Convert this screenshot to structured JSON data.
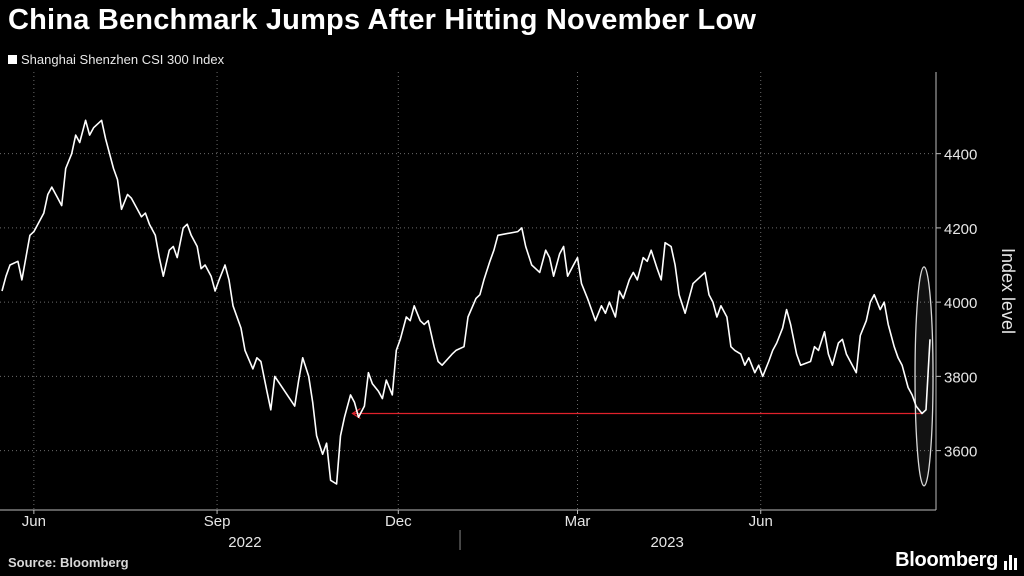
{
  "title": "China Benchmark Jumps After Hitting November Low",
  "legend_label": "Shanghai Shenzhen CSI 300 Index",
  "source": "Source: Bloomberg",
  "brand": "Bloomberg",
  "colors": {
    "background": "#000000",
    "line": "#ffffff",
    "arrow": "#e0212b",
    "grid": "#6b6b6b",
    "highlight": "#d9d9d9"
  },
  "chart_data": {
    "type": "line",
    "title": "",
    "ylabel": "Index level",
    "xlabel": "",
    "ylim": [
      3440,
      4620
    ],
    "yticks": [
      3600,
      3800,
      4000,
      4200,
      4400
    ],
    "x_start": "2022-05-16",
    "x_end": "2023-08-25",
    "month_ticks": [
      {
        "label": "Jun",
        "date": "2022-06-01"
      },
      {
        "label": "Sep",
        "date": "2022-09-01"
      },
      {
        "label": "Dec",
        "date": "2022-12-01"
      },
      {
        "label": "Mar",
        "date": "2023-03-01"
      },
      {
        "label": "Jun",
        "date": "2023-06-01"
      }
    ],
    "year_labels": [
      {
        "label": "2022",
        "date": "2022-09-15"
      },
      {
        "label": "2023",
        "date": "2023-04-15"
      }
    ],
    "year_divider": "2023-01-01",
    "grid": true,
    "series": [
      {
        "name": "Shanghai Shenzhen CSI 300 Index",
        "points": [
          [
            "2022-05-16",
            4030
          ],
          [
            "2022-05-18",
            4070
          ],
          [
            "2022-05-20",
            4100
          ],
          [
            "2022-05-24",
            4110
          ],
          [
            "2022-05-26",
            4060
          ],
          [
            "2022-05-30",
            4180
          ],
          [
            "2022-06-01",
            4190
          ],
          [
            "2022-06-06",
            4240
          ],
          [
            "2022-06-08",
            4290
          ],
          [
            "2022-06-10",
            4310
          ],
          [
            "2022-06-13",
            4280
          ],
          [
            "2022-06-15",
            4260
          ],
          [
            "2022-06-17",
            4360
          ],
          [
            "2022-06-20",
            4400
          ],
          [
            "2022-06-22",
            4450
          ],
          [
            "2022-06-24",
            4430
          ],
          [
            "2022-06-27",
            4490
          ],
          [
            "2022-06-29",
            4450
          ],
          [
            "2022-07-01",
            4470
          ],
          [
            "2022-07-05",
            4490
          ],
          [
            "2022-07-07",
            4440
          ],
          [
            "2022-07-11",
            4360
          ],
          [
            "2022-07-13",
            4330
          ],
          [
            "2022-07-15",
            4250
          ],
          [
            "2022-07-18",
            4290
          ],
          [
            "2022-07-20",
            4280
          ],
          [
            "2022-07-22",
            4260
          ],
          [
            "2022-07-25",
            4230
          ],
          [
            "2022-07-27",
            4240
          ],
          [
            "2022-07-29",
            4210
          ],
          [
            "2022-08-01",
            4180
          ],
          [
            "2022-08-03",
            4120
          ],
          [
            "2022-08-05",
            4070
          ],
          [
            "2022-08-08",
            4140
          ],
          [
            "2022-08-10",
            4150
          ],
          [
            "2022-08-12",
            4120
          ],
          [
            "2022-08-15",
            4200
          ],
          [
            "2022-08-17",
            4210
          ],
          [
            "2022-08-19",
            4180
          ],
          [
            "2022-08-22",
            4150
          ],
          [
            "2022-08-24",
            4090
          ],
          [
            "2022-08-26",
            4100
          ],
          [
            "2022-08-29",
            4070
          ],
          [
            "2022-08-31",
            4030
          ],
          [
            "2022-09-02",
            4060
          ],
          [
            "2022-09-05",
            4100
          ],
          [
            "2022-09-07",
            4060
          ],
          [
            "2022-09-09",
            3990
          ],
          [
            "2022-09-13",
            3930
          ],
          [
            "2022-09-15",
            3870
          ],
          [
            "2022-09-19",
            3820
          ],
          [
            "2022-09-21",
            3850
          ],
          [
            "2022-09-23",
            3840
          ],
          [
            "2022-09-26",
            3760
          ],
          [
            "2022-09-28",
            3710
          ],
          [
            "2022-09-30",
            3800
          ],
          [
            "2022-10-10",
            3720
          ],
          [
            "2022-10-12",
            3790
          ],
          [
            "2022-10-14",
            3850
          ],
          [
            "2022-10-17",
            3800
          ],
          [
            "2022-10-19",
            3730
          ],
          [
            "2022-10-21",
            3640
          ],
          [
            "2022-10-24",
            3590
          ],
          [
            "2022-10-26",
            3620
          ],
          [
            "2022-10-28",
            3520
          ],
          [
            "2022-10-31",
            3510
          ],
          [
            "2022-11-02",
            3640
          ],
          [
            "2022-11-04",
            3690
          ],
          [
            "2022-11-07",
            3750
          ],
          [
            "2022-11-09",
            3730
          ],
          [
            "2022-11-11",
            3690
          ],
          [
            "2022-11-14",
            3720
          ],
          [
            "2022-11-16",
            3810
          ],
          [
            "2022-11-18",
            3780
          ],
          [
            "2022-11-21",
            3760
          ],
          [
            "2022-11-23",
            3740
          ],
          [
            "2022-11-25",
            3790
          ],
          [
            "2022-11-28",
            3750
          ],
          [
            "2022-11-30",
            3870
          ],
          [
            "2022-12-02",
            3900
          ],
          [
            "2022-12-05",
            3960
          ],
          [
            "2022-12-07",
            3950
          ],
          [
            "2022-12-09",
            3990
          ],
          [
            "2022-12-12",
            3950
          ],
          [
            "2022-12-14",
            3940
          ],
          [
            "2022-12-16",
            3950
          ],
          [
            "2022-12-19",
            3880
          ],
          [
            "2022-12-21",
            3840
          ],
          [
            "2022-12-23",
            3830
          ],
          [
            "2022-12-28",
            3860
          ],
          [
            "2022-12-30",
            3870
          ],
          [
            "2023-01-03",
            3880
          ],
          [
            "2023-01-05",
            3960
          ],
          [
            "2023-01-09",
            4010
          ],
          [
            "2023-01-11",
            4020
          ],
          [
            "2023-01-13",
            4060
          ],
          [
            "2023-01-16",
            4110
          ],
          [
            "2023-01-18",
            4140
          ],
          [
            "2023-01-20",
            4180
          ],
          [
            "2023-01-30",
            4190
          ],
          [
            "2023-02-01",
            4200
          ],
          [
            "2023-02-03",
            4150
          ],
          [
            "2023-02-06",
            4100
          ],
          [
            "2023-02-08",
            4090
          ],
          [
            "2023-02-10",
            4080
          ],
          [
            "2023-02-13",
            4140
          ],
          [
            "2023-02-15",
            4120
          ],
          [
            "2023-02-17",
            4070
          ],
          [
            "2023-02-20",
            4130
          ],
          [
            "2023-02-22",
            4150
          ],
          [
            "2023-02-24",
            4070
          ],
          [
            "2023-02-27",
            4100
          ],
          [
            "2023-03-01",
            4120
          ],
          [
            "2023-03-03",
            4050
          ],
          [
            "2023-03-06",
            4010
          ],
          [
            "2023-03-08",
            3980
          ],
          [
            "2023-03-10",
            3950
          ],
          [
            "2023-03-13",
            3990
          ],
          [
            "2023-03-15",
            3970
          ],
          [
            "2023-03-17",
            4000
          ],
          [
            "2023-03-20",
            3960
          ],
          [
            "2023-03-22",
            4030
          ],
          [
            "2023-03-24",
            4010
          ],
          [
            "2023-03-27",
            4060
          ],
          [
            "2023-03-29",
            4080
          ],
          [
            "2023-03-31",
            4060
          ],
          [
            "2023-04-03",
            4120
          ],
          [
            "2023-04-05",
            4110
          ],
          [
            "2023-04-07",
            4140
          ],
          [
            "2023-04-10",
            4090
          ],
          [
            "2023-04-12",
            4060
          ],
          [
            "2023-04-14",
            4160
          ],
          [
            "2023-04-17",
            4150
          ],
          [
            "2023-04-19",
            4100
          ],
          [
            "2023-04-21",
            4020
          ],
          [
            "2023-04-24",
            3970
          ],
          [
            "2023-04-26",
            4010
          ],
          [
            "2023-04-28",
            4050
          ],
          [
            "2023-05-04",
            4080
          ],
          [
            "2023-05-06",
            4020
          ],
          [
            "2023-05-08",
            4000
          ],
          [
            "2023-05-10",
            3960
          ],
          [
            "2023-05-12",
            3990
          ],
          [
            "2023-05-15",
            3960
          ],
          [
            "2023-05-17",
            3880
          ],
          [
            "2023-05-19",
            3870
          ],
          [
            "2023-05-22",
            3860
          ],
          [
            "2023-05-24",
            3830
          ],
          [
            "2023-05-26",
            3850
          ],
          [
            "2023-05-29",
            3810
          ],
          [
            "2023-05-31",
            3830
          ],
          [
            "2023-06-02",
            3800
          ],
          [
            "2023-06-05",
            3840
          ],
          [
            "2023-06-07",
            3870
          ],
          [
            "2023-06-09",
            3890
          ],
          [
            "2023-06-12",
            3930
          ],
          [
            "2023-06-14",
            3980
          ],
          [
            "2023-06-16",
            3940
          ],
          [
            "2023-06-19",
            3860
          ],
          [
            "2023-06-21",
            3830
          ],
          [
            "2023-06-26",
            3840
          ],
          [
            "2023-06-28",
            3880
          ],
          [
            "2023-06-30",
            3870
          ],
          [
            "2023-07-03",
            3920
          ],
          [
            "2023-07-05",
            3860
          ],
          [
            "2023-07-07",
            3830
          ],
          [
            "2023-07-10",
            3890
          ],
          [
            "2023-07-12",
            3900
          ],
          [
            "2023-07-14",
            3860
          ],
          [
            "2023-07-17",
            3830
          ],
          [
            "2023-07-19",
            3810
          ],
          [
            "2023-07-21",
            3910
          ],
          [
            "2023-07-24",
            3950
          ],
          [
            "2023-07-26",
            4000
          ],
          [
            "2023-07-28",
            4020
          ],
          [
            "2023-07-31",
            3980
          ],
          [
            "2023-08-02",
            4000
          ],
          [
            "2023-08-04",
            3940
          ],
          [
            "2023-08-07",
            3880
          ],
          [
            "2023-08-09",
            3850
          ],
          [
            "2023-08-11",
            3830
          ],
          [
            "2023-08-14",
            3770
          ],
          [
            "2023-08-16",
            3750
          ],
          [
            "2023-08-18",
            3720
          ],
          [
            "2023-08-21",
            3700
          ],
          [
            "2023-08-23",
            3710
          ],
          [
            "2023-08-25",
            3900
          ]
        ]
      }
    ],
    "annotations": [
      {
        "type": "arrow",
        "from_date": "2023-08-21",
        "to_date": "2022-11-08",
        "value": 3700
      },
      {
        "type": "ellipse",
        "center_date": "2023-08-22",
        "center_value": 3800,
        "value_range": [
          3560,
          4150
        ]
      }
    ]
  }
}
